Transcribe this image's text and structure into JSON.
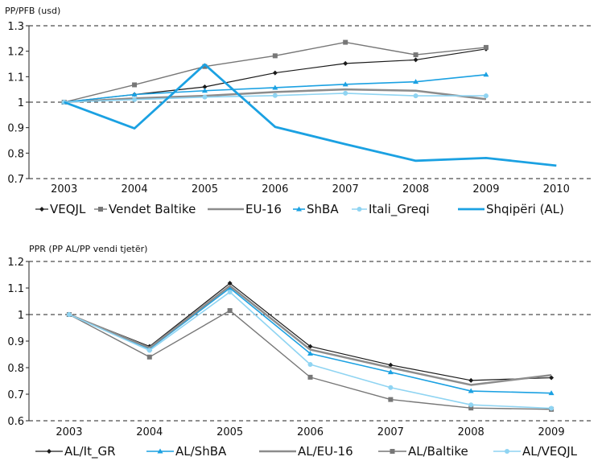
{
  "chart_data": [
    {
      "type": "line",
      "title": "PP/PFB (usd)",
      "xlabel": "",
      "ylabel": "",
      "x": [
        "2003",
        "2004",
        "2005",
        "2006",
        "2007",
        "2008",
        "2009",
        "2010"
      ],
      "ylim": [
        0.7,
        1.3
      ],
      "yticks": [
        "0.7",
        "0.8",
        "0.9",
        "1",
        "1.1",
        "1.2",
        "1.3"
      ],
      "grid": "dashed horizontal at 1.3, 1.0, 0.7",
      "legend_position": "bottom",
      "series": [
        {
          "name": "VEQJL",
          "color": "#1a1a1a",
          "marker": "diamond",
          "width": 1.2,
          "values": [
            1.0,
            1.03,
            1.06,
            1.115,
            1.152,
            1.166,
            1.209,
            null
          ]
        },
        {
          "name": "Vendet Baltike",
          "color": "#777777",
          "marker": "square",
          "width": 1.4,
          "values": [
            1.0,
            1.068,
            1.14,
            1.182,
            1.235,
            1.186,
            1.215,
            null
          ]
        },
        {
          "name": "EU-16",
          "color": "#8c8c8c",
          "marker": "none",
          "width": 2.5,
          "values": [
            1.0,
            1.015,
            1.025,
            1.04,
            1.05,
            1.045,
            1.012,
            null
          ]
        },
        {
          "name": "ShBA",
          "color": "#1ba1e2",
          "marker": "triangle",
          "width": 1.6,
          "values": [
            1.0,
            1.03,
            1.045,
            1.057,
            1.07,
            1.08,
            1.108,
            null
          ]
        },
        {
          "name": "Itali_Greqi",
          "color": "#8fd4f2",
          "marker": "circle",
          "width": 1.6,
          "values": [
            1.0,
            1.01,
            1.02,
            1.026,
            1.035,
            1.025,
            1.025,
            null
          ]
        },
        {
          "name": "Shqipëri (AL)",
          "color": "#1ba1e2",
          "marker": "none",
          "width": 2.8,
          "values": [
            1.0,
            0.897,
            1.148,
            0.903,
            0.835,
            0.77,
            0.781,
            0.751
          ]
        }
      ]
    },
    {
      "type": "line",
      "title": "PPR (PP AL/PP vendi tjetër)",
      "xlabel": "",
      "ylabel": "",
      "x": [
        "2003",
        "2004",
        "2005",
        "2006",
        "2007",
        "2008",
        "2009"
      ],
      "ylim": [
        0.6,
        1.2
      ],
      "yticks": [
        "0.6",
        "0.7",
        "0.8",
        "0.9",
        "1",
        "1.1",
        "1.2"
      ],
      "grid": "dashed horizontal at 1.2, 1.0, 0.6",
      "legend_position": "bottom",
      "series": [
        {
          "name": "AL/It_GR",
          "color": "#1a1a1a",
          "marker": "diamond",
          "width": 1.2,
          "values": [
            1.0,
            0.88,
            1.118,
            0.88,
            0.81,
            0.752,
            0.762
          ]
        },
        {
          "name": "AL/ShBA",
          "color": "#1ba1e2",
          "marker": "triangle",
          "width": 1.6,
          "values": [
            1.0,
            0.871,
            1.1,
            0.853,
            0.783,
            0.712,
            0.704
          ]
        },
        {
          "name": "AL/EU-16",
          "color": "#8c8c8c",
          "marker": "none",
          "width": 2.5,
          "values": [
            1.0,
            0.875,
            1.108,
            0.868,
            0.8,
            0.735,
            0.772
          ]
        },
        {
          "name": "AL/Baltike",
          "color": "#777777",
          "marker": "square",
          "width": 1.4,
          "values": [
            1.0,
            0.84,
            1.015,
            0.764,
            0.68,
            0.648,
            0.643
          ]
        },
        {
          "name": "AL/VEQJL",
          "color": "#8fd4f2",
          "marker": "circle",
          "width": 1.6,
          "values": [
            1.0,
            0.865,
            1.085,
            0.812,
            0.725,
            0.66,
            0.647
          ]
        }
      ]
    }
  ]
}
